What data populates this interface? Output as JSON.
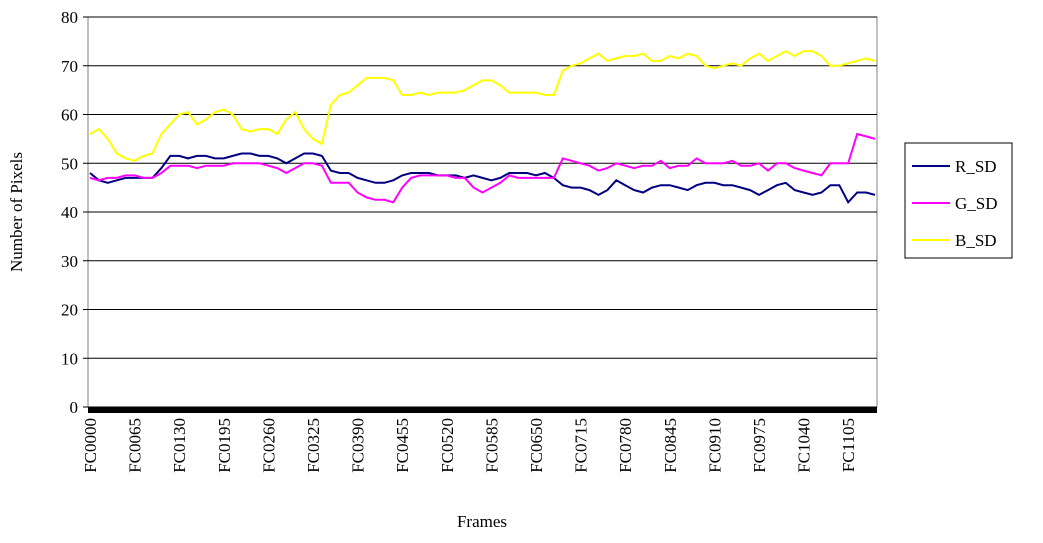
{
  "chart_data": {
    "type": "line",
    "x_label": "Frames",
    "y_label": "Number of Pixels",
    "categories": [
      "FC0000",
      null,
      null,
      null,
      null,
      "FC0065",
      null,
      null,
      null,
      null,
      "FC0130",
      null,
      null,
      null,
      null,
      "FC0195",
      null,
      null,
      null,
      null,
      "FC0260",
      null,
      null,
      null,
      null,
      "FC0325",
      null,
      null,
      null,
      null,
      "FC0390",
      null,
      null,
      null,
      null,
      "FC0455",
      null,
      null,
      null,
      null,
      "FC0520",
      null,
      null,
      null,
      null,
      "FC0585",
      null,
      null,
      null,
      null,
      "FC0650",
      null,
      null,
      null,
      null,
      "FC0715",
      null,
      null,
      null,
      null,
      "FC0780",
      null,
      null,
      null,
      null,
      "FC0845",
      null,
      null,
      null,
      null,
      "FC0910",
      null,
      null,
      null,
      null,
      "FC0975",
      null,
      null,
      null,
      null,
      "FC1040",
      null,
      null,
      null,
      null,
      "FC1105",
      null,
      null,
      null
    ],
    "series": [
      {
        "name": "R_SD",
        "color": "#000080",
        "values": [
          48,
          46.5,
          46,
          46.5,
          47,
          47,
          47,
          47,
          49,
          51.5,
          51.5,
          51,
          51.5,
          51.5,
          51,
          51,
          51.5,
          52,
          52,
          51.5,
          51.5,
          51,
          50,
          51,
          52,
          52,
          51.5,
          48.5,
          48,
          48,
          47,
          46.5,
          46,
          46,
          46.5,
          47.5,
          48,
          48,
          48,
          47.5,
          47.5,
          47.5,
          47,
          47.5,
          47,
          46.5,
          47,
          48,
          48,
          48,
          47.5,
          48,
          47,
          45.5,
          45,
          45,
          44.5,
          43.5,
          44.5,
          46.5,
          45.5,
          44.5,
          44,
          45,
          45.5,
          45.5,
          45,
          44.5,
          45.5,
          46,
          46,
          45.5,
          45.5,
          45,
          44.5,
          43.5,
          44.5,
          45.5,
          46,
          44.5,
          44,
          43.5,
          44,
          45.5,
          45.5,
          42,
          44,
          44,
          43.5
        ]
      },
      {
        "name": "G_SD",
        "color": "#ff00ff",
        "values": [
          47,
          46.5,
          47,
          47,
          47.5,
          47.5,
          47,
          47,
          48,
          49.5,
          49.5,
          49.5,
          49,
          49.5,
          49.5,
          49.5,
          50,
          50,
          50,
          50,
          49.5,
          49,
          48,
          49,
          50,
          50,
          49.5,
          46,
          46,
          46,
          44,
          43,
          42.5,
          42.5,
          42,
          45,
          47,
          47.5,
          47.5,
          47.5,
          47.5,
          47,
          47,
          45,
          44,
          45,
          46,
          47.5,
          47,
          47,
          47,
          47,
          47,
          51,
          50.5,
          50,
          49.5,
          48.5,
          49,
          50,
          49.5,
          49,
          49.5,
          49.5,
          50.5,
          49,
          49.5,
          49.5,
          51,
          50,
          50,
          50,
          50.5,
          49.5,
          49.5,
          50,
          48.5,
          50,
          50,
          49,
          48.5,
          48,
          47.5,
          50,
          50,
          50,
          56,
          55.5,
          55
        ]
      },
      {
        "name": "B_SD",
        "color": "#ffff00",
        "values": [
          56,
          57,
          55,
          52,
          51,
          50.5,
          51.5,
          52,
          56,
          58,
          60,
          60.5,
          58,
          59,
          60.5,
          61,
          60,
          57,
          56.5,
          57,
          57,
          56,
          59,
          60.5,
          57,
          55,
          54,
          62,
          64,
          64.5,
          66,
          67.5,
          67.5,
          67.5,
          67,
          64,
          64,
          64.5,
          64,
          64.5,
          64.5,
          64.5,
          65,
          66,
          67,
          67,
          66,
          64.5,
          64.5,
          64.5,
          64.5,
          64,
          64,
          69,
          70,
          70.5,
          71.5,
          72.5,
          71,
          71.5,
          72,
          72,
          72.5,
          71,
          71,
          72,
          71.5,
          72.5,
          72,
          70,
          69.5,
          70,
          70.5,
          70,
          71.5,
          72.5,
          71,
          72,
          73,
          72,
          73,
          73,
          72,
          70,
          70,
          70.5,
          71,
          71.5,
          71
        ]
      }
    ],
    "ylim": [
      0,
      80
    ],
    "yticks": [
      0,
      10,
      20,
      30,
      40,
      50,
      60,
      70,
      80
    ],
    "grid": true
  }
}
